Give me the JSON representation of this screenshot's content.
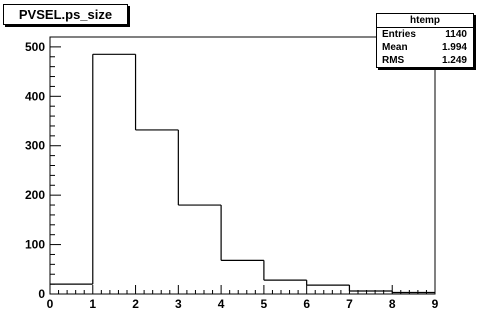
{
  "title": "PVSEL.ps_size",
  "stats": {
    "name": "htemp",
    "rows": [
      {
        "label": "Entries",
        "value": "1140"
      },
      {
        "label": "Mean",
        "value": "1.994"
      },
      {
        "label": "RMS",
        "value": "1.249"
      }
    ]
  },
  "chart_data": {
    "type": "bar",
    "histogram": true,
    "bin_edges": [
      0,
      1,
      2,
      3,
      4,
      5,
      6,
      7,
      8,
      9
    ],
    "values": [
      20,
      485,
      332,
      180,
      68,
      28,
      18,
      6,
      3
    ],
    "xlim": [
      0,
      9
    ],
    "ylim": [
      0,
      520
    ],
    "xticks": [
      0,
      1,
      2,
      3,
      4,
      5,
      6,
      7,
      8,
      9
    ],
    "yticks": [
      0,
      100,
      200,
      300,
      400,
      500
    ],
    "xlabel": "",
    "ylabel": "",
    "grid": false,
    "colors": {
      "line": "#000000",
      "background": "#ffffff"
    }
  }
}
